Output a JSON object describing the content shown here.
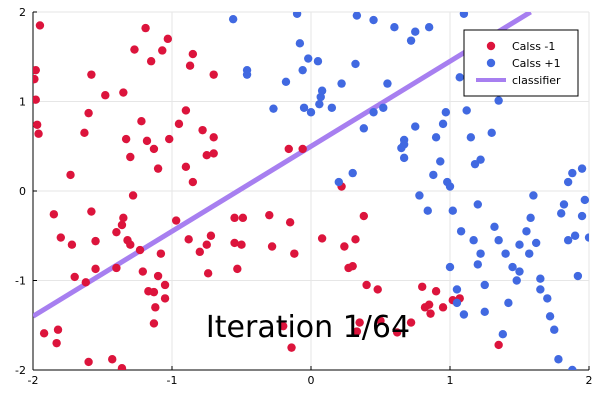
{
  "chart_data": {
    "type": "scatter",
    "xlim": [
      -2,
      2
    ],
    "ylim": [
      -2,
      2
    ],
    "xticks": [
      -2,
      -1,
      0,
      1,
      2
    ],
    "yticks": [
      -2,
      -1,
      0,
      1,
      2
    ],
    "grid": true,
    "legend_position": "top-right",
    "annotation": "Iteration 1/64",
    "series": [
      {
        "name": "Calss -1",
        "color": "#dc143c",
        "points": [
          [
            -1.95,
            1.85
          ],
          [
            -1.98,
            1.35
          ],
          [
            -1.99,
            1.25
          ],
          [
            -1.98,
            1.02
          ],
          [
            -1.97,
            0.74
          ],
          [
            -1.96,
            0.64
          ],
          [
            -1.85,
            -0.26
          ],
          [
            -1.8,
            -0.52
          ],
          [
            -1.72,
            -0.6
          ],
          [
            -1.7,
            -0.96
          ],
          [
            -1.62,
            -1.02
          ],
          [
            -1.92,
            -1.59
          ],
          [
            -1.82,
            -1.55
          ],
          [
            -1.83,
            -1.7
          ],
          [
            -1.6,
            -1.91
          ],
          [
            -1.43,
            -1.88
          ],
          [
            -1.36,
            -1.98
          ],
          [
            -1.73,
            0.18
          ],
          [
            -1.63,
            0.65
          ],
          [
            -1.6,
            0.87
          ],
          [
            -1.58,
            1.3
          ],
          [
            -1.48,
            1.07
          ],
          [
            -1.35,
            1.1
          ],
          [
            -1.33,
            0.58
          ],
          [
            -1.3,
            0.38
          ],
          [
            -1.28,
            -0.05
          ],
          [
            -1.35,
            -0.3
          ],
          [
            -1.36,
            -0.38
          ],
          [
            -1.4,
            -0.46
          ],
          [
            -1.32,
            -0.55
          ],
          [
            -1.58,
            -0.23
          ],
          [
            -1.55,
            -0.87
          ],
          [
            -1.4,
            -0.86
          ],
          [
            -1.23,
            -0.66
          ],
          [
            -1.21,
            -0.9
          ],
          [
            -1.17,
            -1.12
          ],
          [
            -1.13,
            -1.13
          ],
          [
            -1.12,
            -1.3
          ],
          [
            -1.1,
            -0.95
          ],
          [
            -1.08,
            -0.7
          ],
          [
            -1.05,
            -1.05
          ],
          [
            -1.13,
            -1.48
          ],
          [
            -1.22,
            0.78
          ],
          [
            -1.18,
            0.56
          ],
          [
            -1.13,
            0.47
          ],
          [
            -1.1,
            0.25
          ],
          [
            -1.02,
            0.58
          ],
          [
            -0.95,
            0.75
          ],
          [
            -0.9,
            0.27
          ],
          [
            -0.97,
            -0.33
          ],
          [
            -0.88,
            -0.54
          ],
          [
            -0.8,
            -0.68
          ],
          [
            -0.78,
            0.68
          ],
          [
            -0.7,
            0.6
          ],
          [
            -0.75,
            0.4
          ],
          [
            -0.7,
            0.42
          ],
          [
            -0.72,
            -0.5
          ],
          [
            -0.75,
            -0.6
          ],
          [
            -0.74,
            -0.92
          ],
          [
            -0.55,
            -0.58
          ],
          [
            -0.5,
            -0.6
          ],
          [
            -0.53,
            -0.87
          ],
          [
            -0.55,
            -0.3
          ],
          [
            -0.49,
            -0.3
          ],
          [
            -0.3,
            -0.27
          ],
          [
            -0.28,
            -0.62
          ],
          [
            -0.15,
            -0.35
          ],
          [
            -0.12,
            -0.7
          ],
          [
            -0.16,
            0.47
          ],
          [
            -0.06,
            0.47
          ],
          [
            0.08,
            -0.53
          ],
          [
            0.22,
            0.05
          ],
          [
            0.24,
            -0.62
          ],
          [
            0.27,
            -0.86
          ],
          [
            0.3,
            -0.84
          ],
          [
            0.32,
            -0.54
          ],
          [
            0.38,
            -0.28
          ],
          [
            0.4,
            -1.05
          ],
          [
            0.35,
            -1.47
          ],
          [
            0.33,
            -1.57
          ],
          [
            0.48,
            -1.1
          ],
          [
            0.5,
            -1.45
          ],
          [
            0.62,
            -1.58
          ],
          [
            0.72,
            -1.47
          ],
          [
            0.8,
            -1.07
          ],
          [
            0.9,
            -1.12
          ],
          [
            0.85,
            -1.27
          ],
          [
            0.82,
            -1.3
          ],
          [
            0.86,
            -1.37
          ],
          [
            0.95,
            -1.3
          ],
          [
            1.02,
            -1.22
          ],
          [
            1.07,
            -1.2
          ],
          [
            1.35,
            -1.72
          ],
          [
            -0.14,
            -1.75
          ],
          [
            -0.2,
            -1.51
          ],
          [
            -1.55,
            -0.56
          ],
          [
            -1.3,
            -0.6
          ],
          [
            -1.05,
            -1.2
          ],
          [
            -1.15,
            1.45
          ],
          [
            -1.07,
            1.57
          ],
          [
            -1.03,
            1.7
          ],
          [
            -1.19,
            1.82
          ],
          [
            -1.27,
            1.58
          ],
          [
            -0.85,
            1.53
          ],
          [
            -0.87,
            1.4
          ],
          [
            -0.7,
            1.3
          ],
          [
            -0.9,
            0.9
          ],
          [
            -0.85,
            0.1
          ]
        ]
      },
      {
        "name": "Calss +1",
        "color": "#4169e1",
        "points": [
          [
            -0.56,
            1.92
          ],
          [
            -0.46,
            1.35
          ],
          [
            -0.46,
            1.3
          ],
          [
            -0.27,
            0.92
          ],
          [
            -0.18,
            1.22
          ],
          [
            -0.1,
            1.98
          ],
          [
            -0.08,
            1.65
          ],
          [
            -0.06,
            1.35
          ],
          [
            -0.05,
            0.93
          ],
          [
            -0.02,
            1.48
          ],
          [
            0.0,
            0.88
          ],
          [
            0.05,
            1.45
          ],
          [
            0.06,
            0.97
          ],
          [
            0.07,
            1.05
          ],
          [
            0.08,
            1.12
          ],
          [
            0.15,
            0.93
          ],
          [
            0.22,
            1.2
          ],
          [
            0.2,
            0.1
          ],
          [
            0.3,
            0.2
          ],
          [
            0.32,
            1.42
          ],
          [
            0.33,
            1.96
          ],
          [
            0.45,
            1.91
          ],
          [
            0.6,
            1.83
          ],
          [
            0.52,
            0.93
          ],
          [
            0.55,
            1.2
          ],
          [
            0.65,
            0.48
          ],
          [
            0.67,
            0.37
          ],
          [
            0.75,
            0.72
          ],
          [
            0.72,
            1.68
          ],
          [
            0.75,
            1.78
          ],
          [
            0.85,
            1.83
          ],
          [
            0.78,
            -0.05
          ],
          [
            0.84,
            -0.22
          ],
          [
            0.9,
            0.6
          ],
          [
            0.95,
            0.75
          ],
          [
            0.98,
            0.1
          ],
          [
            1.0,
            0.05
          ],
          [
            1.0,
            -0.85
          ],
          [
            1.02,
            -0.22
          ],
          [
            1.05,
            -1.1
          ],
          [
            1.05,
            -1.25
          ],
          [
            1.08,
            -0.45
          ],
          [
            1.12,
            0.9
          ],
          [
            1.15,
            0.6
          ],
          [
            1.18,
            0.3
          ],
          [
            1.2,
            -0.15
          ],
          [
            1.22,
            -0.7
          ],
          [
            1.25,
            -1.05
          ],
          [
            1.28,
            1.2
          ],
          [
            1.35,
            1.01
          ],
          [
            1.3,
            0.65
          ],
          [
            1.32,
            -0.4
          ],
          [
            1.35,
            -0.55
          ],
          [
            1.4,
            -0.7
          ],
          [
            1.45,
            -0.85
          ],
          [
            1.48,
            -1.0
          ],
          [
            1.5,
            -0.6
          ],
          [
            1.55,
            -0.45
          ],
          [
            1.58,
            -0.3
          ],
          [
            1.6,
            -0.05
          ],
          [
            1.65,
            -1.1
          ],
          [
            1.7,
            -1.2
          ],
          [
            1.72,
            -1.4
          ],
          [
            1.75,
            -1.55
          ],
          [
            1.78,
            -1.88
          ],
          [
            1.8,
            -0.25
          ],
          [
            1.82,
            -0.15
          ],
          [
            1.85,
            0.1
          ],
          [
            1.88,
            0.2
          ],
          [
            1.9,
            -0.5
          ],
          [
            1.92,
            -0.95
          ],
          [
            1.95,
            -0.28
          ],
          [
            1.97,
            -0.1
          ],
          [
            2.0,
            -0.52
          ],
          [
            1.95,
            0.25
          ],
          [
            1.85,
            -0.55
          ],
          [
            1.62,
            -0.58
          ],
          [
            1.65,
            -0.98
          ],
          [
            1.57,
            -0.7
          ],
          [
            1.42,
            -1.25
          ],
          [
            1.38,
            -1.6
          ],
          [
            1.25,
            -1.35
          ],
          [
            1.2,
            -0.82
          ],
          [
            1.1,
            -1.38
          ],
          [
            0.97,
            0.88
          ],
          [
            1.07,
            1.27
          ],
          [
            1.17,
            1.2
          ],
          [
            1.1,
            1.98
          ],
          [
            1.22,
            0.35
          ],
          [
            1.17,
            -0.55
          ],
          [
            0.93,
            0.33
          ],
          [
            0.88,
            0.18
          ],
          [
            0.45,
            0.88
          ],
          [
            0.38,
            0.7
          ],
          [
            0.67,
            0.57
          ],
          [
            0.67,
            0.52
          ],
          [
            1.5,
            -0.9
          ],
          [
            1.88,
            -2.0
          ]
        ]
      }
    ],
    "lines": [
      {
        "name": "classifier",
        "color": "#a77ff0",
        "x": [
          -2.0,
          1.58
        ],
        "y": [
          -1.4,
          2.0
        ]
      }
    ]
  }
}
